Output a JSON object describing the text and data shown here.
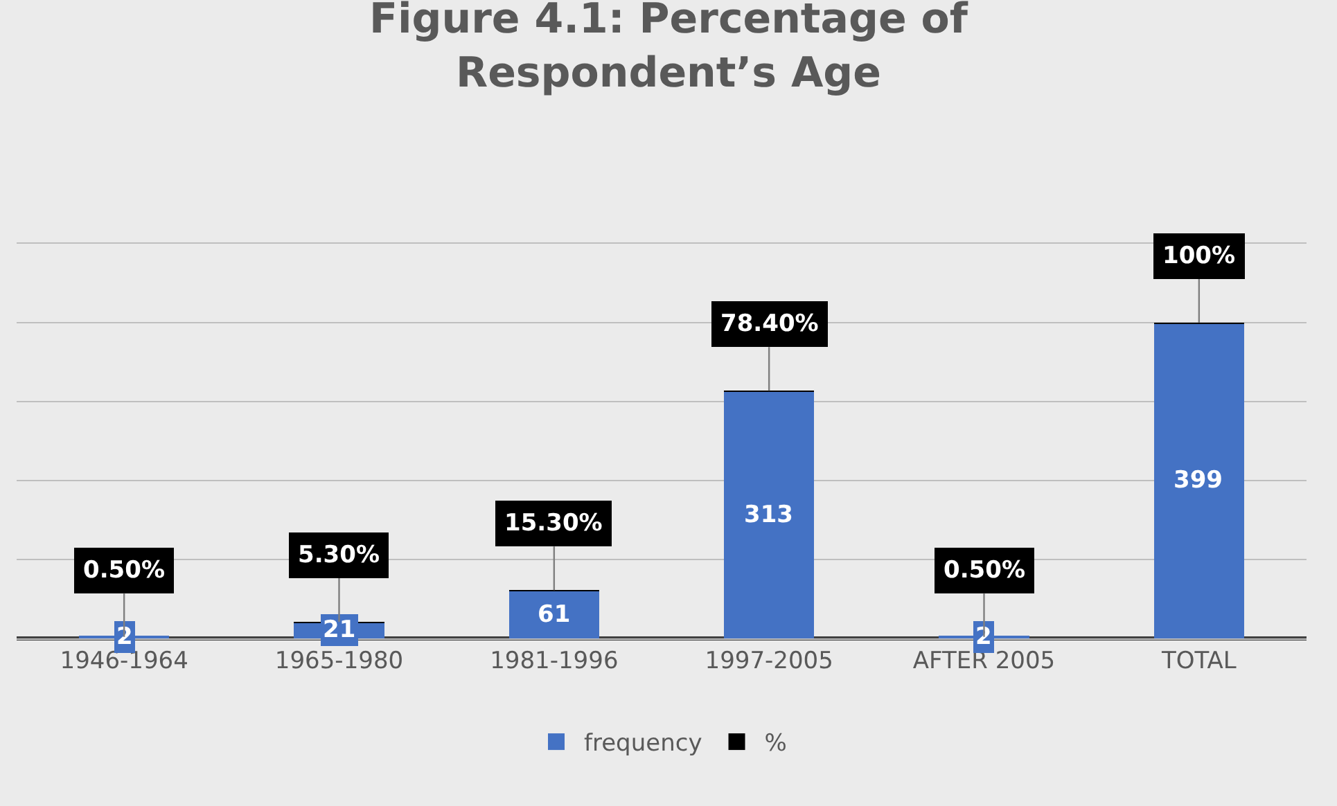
{
  "chart_data": {
    "type": "bar",
    "title": "Figure 4.1: Percentage of\nRespondent’s Age",
    "stacked": true,
    "categories": [
      "1946-1964",
      "1965-1980",
      "1981-1996",
      "1997-2005",
      "AFTER 2005",
      "TOTAL"
    ],
    "series": [
      {
        "name": "frequency",
        "color": "#4472c4",
        "values": [
          2,
          21,
          61,
          313,
          2,
          399
        ],
        "value_labels": [
          "2",
          "21",
          "61",
          "313",
          "2",
          "399"
        ]
      },
      {
        "name": "%",
        "color": "#000000",
        "values": [
          0.005,
          0.053,
          0.153,
          0.784,
          0.005,
          1.0
        ],
        "value_labels": [
          "0.50%",
          "5.30%",
          "15.30%",
          "78.40%",
          "0.50%",
          "100%"
        ]
      }
    ],
    "ylim": [
      0,
      500
    ],
    "yticks": [
      {
        "value": 0,
        "label": null
      },
      {
        "value": 100,
        "label": null
      },
      {
        "value": 200,
        "label": null
      },
      {
        "value": 300,
        "label": null
      },
      {
        "value": 400,
        "label": null
      },
      {
        "value": 500,
        "label": null
      }
    ],
    "grid": "y",
    "legend": "bottom",
    "tick_labels": "x"
  }
}
